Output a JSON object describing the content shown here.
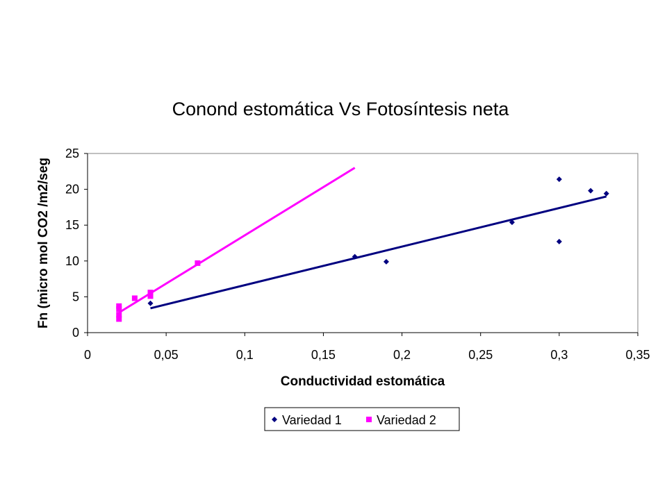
{
  "chart_data": {
    "type": "scatter",
    "title": "Conond estomática Vs Fotosíntesis neta",
    "xlabel": "Conductividad estomática",
    "ylabel": "Fn (micro mol CO2 /m2/seg",
    "xlim": [
      0,
      0.35
    ],
    "ylim": [
      0,
      25
    ],
    "x_ticks": [
      0,
      0.05,
      0.1,
      0.15,
      0.2,
      0.25,
      0.3,
      0.35
    ],
    "x_tick_labels": [
      "0",
      "0,05",
      "0,1",
      "0,15",
      "0,2",
      "0,25",
      "0,3",
      "0,35"
    ],
    "y_ticks": [
      0,
      5,
      10,
      15,
      20,
      25
    ],
    "y_tick_labels": [
      "0",
      "5",
      "10",
      "15",
      "20",
      "25"
    ],
    "grid": false,
    "legend_position": "bottom",
    "series": [
      {
        "name": "Variedad 1",
        "color": "#000080",
        "marker": "diamond",
        "x": [
          0.04,
          0.17,
          0.19,
          0.27,
          0.3,
          0.3,
          0.32,
          0.33
        ],
        "y": [
          4.1,
          10.6,
          9.9,
          15.4,
          21.4,
          12.7,
          19.8,
          19.4
        ],
        "trendline": {
          "x": [
            0.04,
            0.33
          ],
          "y": [
            3.4,
            19.0
          ]
        }
      },
      {
        "name": "Variedad 2",
        "color": "#FF00FF",
        "marker": "square",
        "x": [
          0.02,
          0.02,
          0.02,
          0.02,
          0.03,
          0.04,
          0.04,
          0.07
        ],
        "y": [
          1.9,
          2.5,
          3.3,
          3.7,
          4.8,
          5.1,
          5.6,
          9.7
        ],
        "trendline": {
          "x": [
            0.02,
            0.17
          ],
          "y": [
            2.8,
            23.0
          ]
        }
      }
    ]
  }
}
